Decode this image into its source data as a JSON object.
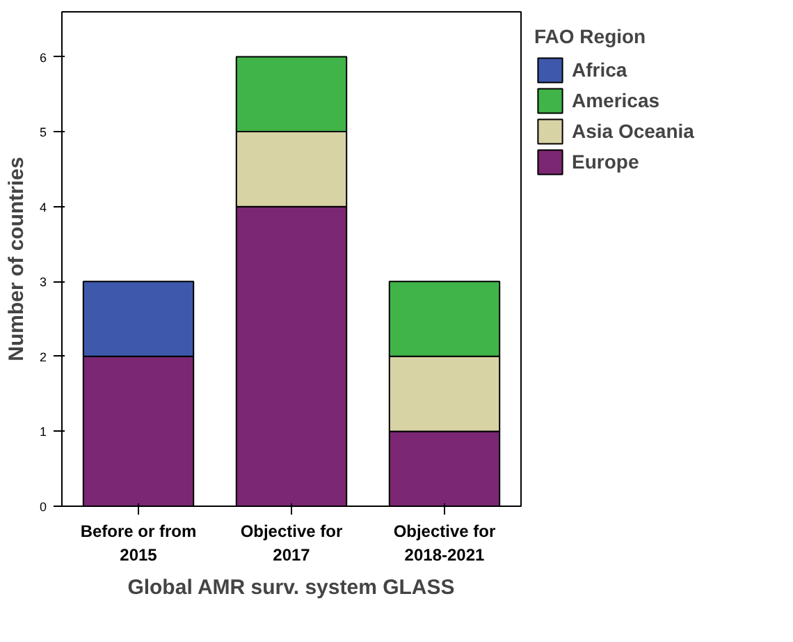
{
  "chart_data": {
    "type": "bar",
    "stacked": true,
    "xlabel": "Global AMR surv. system GLASS",
    "ylabel": "Number of countries",
    "legend_title": "FAO Region",
    "categories": [
      "Before or from\n2015",
      "Objective for\n2017",
      "Objective for\n2018-2021"
    ],
    "series": [
      {
        "name": "Europe",
        "color": "#7b2773",
        "values": [
          2,
          4,
          1
        ]
      },
      {
        "name": "Asia Oceania",
        "color": "#d8d3a5",
        "values": [
          0,
          1,
          1
        ]
      },
      {
        "name": "Americas",
        "color": "#40b448",
        "values": [
          0,
          1,
          1
        ]
      },
      {
        "name": "Africa",
        "color": "#3e58ac",
        "values": [
          1,
          0,
          0
        ]
      }
    ],
    "ylim": [
      0,
      6.6
    ],
    "yticks": [
      0,
      1,
      2,
      3,
      4,
      5,
      6
    ],
    "grid": false,
    "legend": "right"
  }
}
